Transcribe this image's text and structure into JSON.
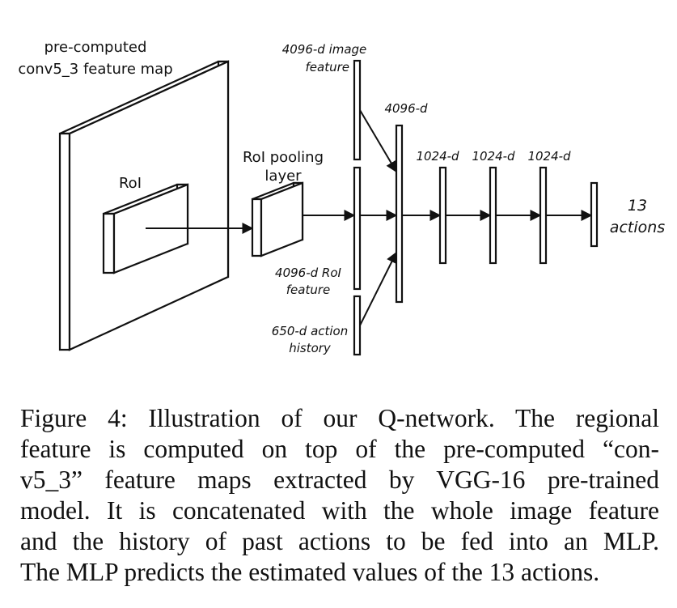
{
  "diagram": {
    "feature_map_label_1": "pre-computed",
    "feature_map_label_2": "conv5_3 feature map",
    "roi_label": "RoI",
    "pooling_label_1": "RoI pooling",
    "pooling_label_2": "layer",
    "image_feature_label_1": "4096-d image",
    "image_feature_label_2": "feature",
    "roi_feature_label_1": "4096-d RoI",
    "roi_feature_label_2": "feature",
    "action_history_label_1": "650-d action",
    "action_history_label_2": "history",
    "concat_label": "4096-d",
    "fc1_label": "1024-d",
    "fc2_label": "1024-d",
    "fc3_label": "1024-d",
    "output_label_1": "13",
    "output_label_2": "actions"
  },
  "caption": {
    "line1": "Figure 4: Illustration of our Q-network. The regional",
    "line2": "feature is computed on top of the pre-computed “con-",
    "line3": "v5_3” feature maps extracted by VGG-16 pre-trained",
    "line4": "model. It is concatenated with the whole image feature",
    "line5": "and the history of past actions to be fed into an MLP.",
    "line6": "The MLP predicts the estimated values of the 13 actions."
  }
}
